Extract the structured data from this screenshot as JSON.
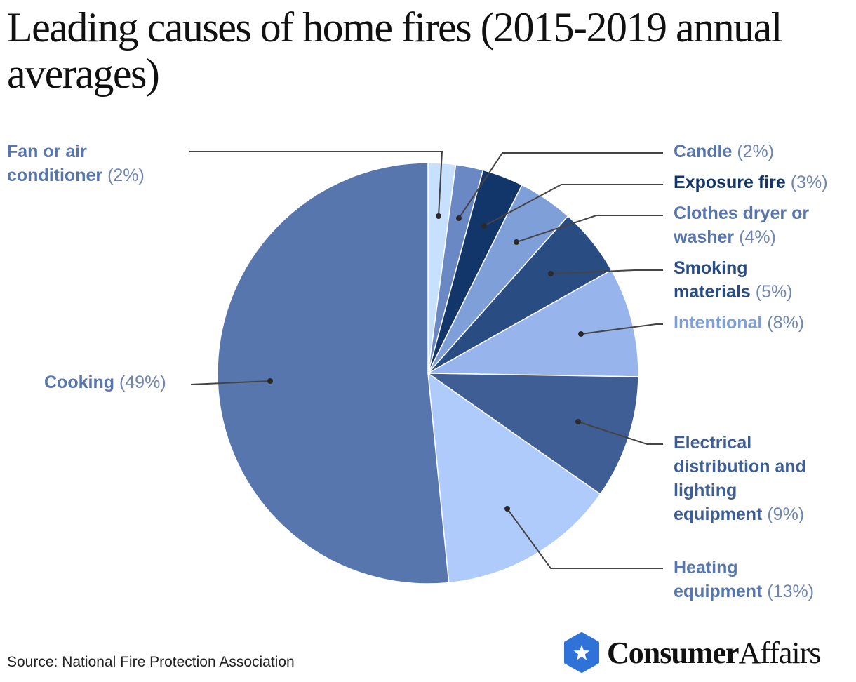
{
  "chart_data": {
    "type": "pie",
    "title": "Leading causes of home fires (2015-2019 annual averages)",
    "start": "top",
    "direction": "clockwise",
    "slices": [
      {
        "label": "Fan or air conditioner",
        "line1": "Fan or air",
        "line2": "conditioner",
        "pct_label": "(2%)",
        "value": 2,
        "color": "#c6e0fd",
        "text_color": "#5876ae"
      },
      {
        "label": "Candle",
        "line1": "Candle",
        "pct_label": "(2%)",
        "value": 2,
        "color": "#6a88c4",
        "text_color": "#5876ae"
      },
      {
        "label": "Exposure fire",
        "line1": "Exposure fire",
        "pct_label": "(3%)",
        "value": 3,
        "color": "#13366a",
        "text_color": "#13366a"
      },
      {
        "label": "Clothes dryer or washer",
        "line1": "Clothes dryer or",
        "line2": "washer",
        "pct_label": "(4%)",
        "value": 4,
        "color": "#7f9fd8",
        "text_color": "#5876ae"
      },
      {
        "label": "Smoking materials",
        "line1": "Smoking",
        "line2": "materials",
        "pct_label": "(5%)",
        "value": 5,
        "color": "#294c82",
        "text_color": "#294c82"
      },
      {
        "label": "Intentional",
        "line1": "Intentional",
        "pct_label": "(8%)",
        "value": 8,
        "color": "#98b4ec",
        "text_color": "#7f9fd8"
      },
      {
        "label": "Electrical distribution and lighting equipment",
        "line1": "Electrical",
        "line2": "distribution and",
        "line3": "lighting",
        "line4": "equipment",
        "pct_label": "(9%)",
        "value": 9,
        "color": "#3f5e96",
        "text_color": "#3f5e96"
      },
      {
        "label": "Heating equipment",
        "line1": "Heating",
        "line2": "equipment",
        "pct_label": "(13%)",
        "value": 13,
        "color": "#aecbfb",
        "text_color": "#5876ae"
      },
      {
        "label": "Cooking",
        "line1": "Cooking",
        "pct_label": "(49%)",
        "value": 49,
        "color": "#5876ae",
        "text_color": "#5876ae"
      }
    ]
  },
  "source": "Source: National Fire Protection Association",
  "logo": {
    "bold": "Consumer",
    "regular": "Affairs",
    "color": "#2f73d8"
  }
}
